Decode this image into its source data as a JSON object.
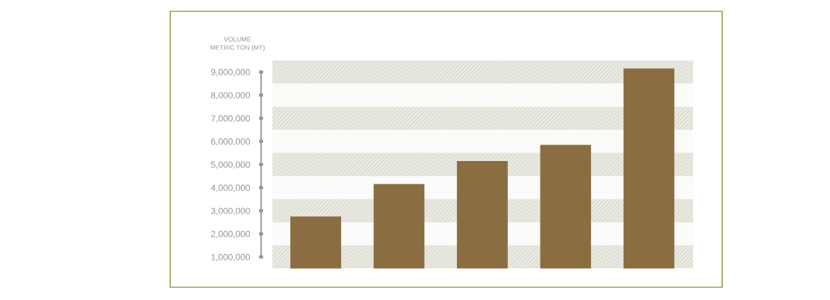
{
  "chart_data": {
    "type": "bar",
    "ylabel": "VOLUME\nMETRIC TON (MT)",
    "categories": [
      null,
      null,
      null,
      null,
      null
    ],
    "values": [
      2750000,
      4150000,
      5150000,
      5850000,
      9150000
    ],
    "color": "#8b6d42",
    "ylim": [
      500000,
      9500000
    ],
    "yticks": [
      {
        "value": 1000000,
        "label": "1,000,000"
      },
      {
        "value": 2000000,
        "label": "2,000,000"
      },
      {
        "value": 3000000,
        "label": "3,000,000"
      },
      {
        "value": 4000000,
        "label": "4,000,000"
      },
      {
        "value": 5000000,
        "label": "5,000,000"
      },
      {
        "value": 6000000,
        "label": "6,000,000"
      },
      {
        "value": 7000000,
        "label": "7,000,000"
      },
      {
        "value": 8000000,
        "label": "8,000,000"
      },
      {
        "value": 9000000,
        "label": "9,000,000"
      }
    ],
    "tick_labels": "y",
    "bands": [
      {
        "axis": "y",
        "from": 500000,
        "to": 1500000,
        "color": "#ecece5"
      },
      {
        "axis": "y",
        "from": 2500000,
        "to": 3500000,
        "color": "#ecece5"
      },
      {
        "axis": "y",
        "from": 4500000,
        "to": 5500000,
        "color": "#ecece5"
      },
      {
        "axis": "y",
        "from": 6500000,
        "to": 7500000,
        "color": "#ecece5"
      },
      {
        "axis": "y",
        "from": 8500000,
        "to": 9500000,
        "color": "#ecece5"
      }
    ]
  }
}
